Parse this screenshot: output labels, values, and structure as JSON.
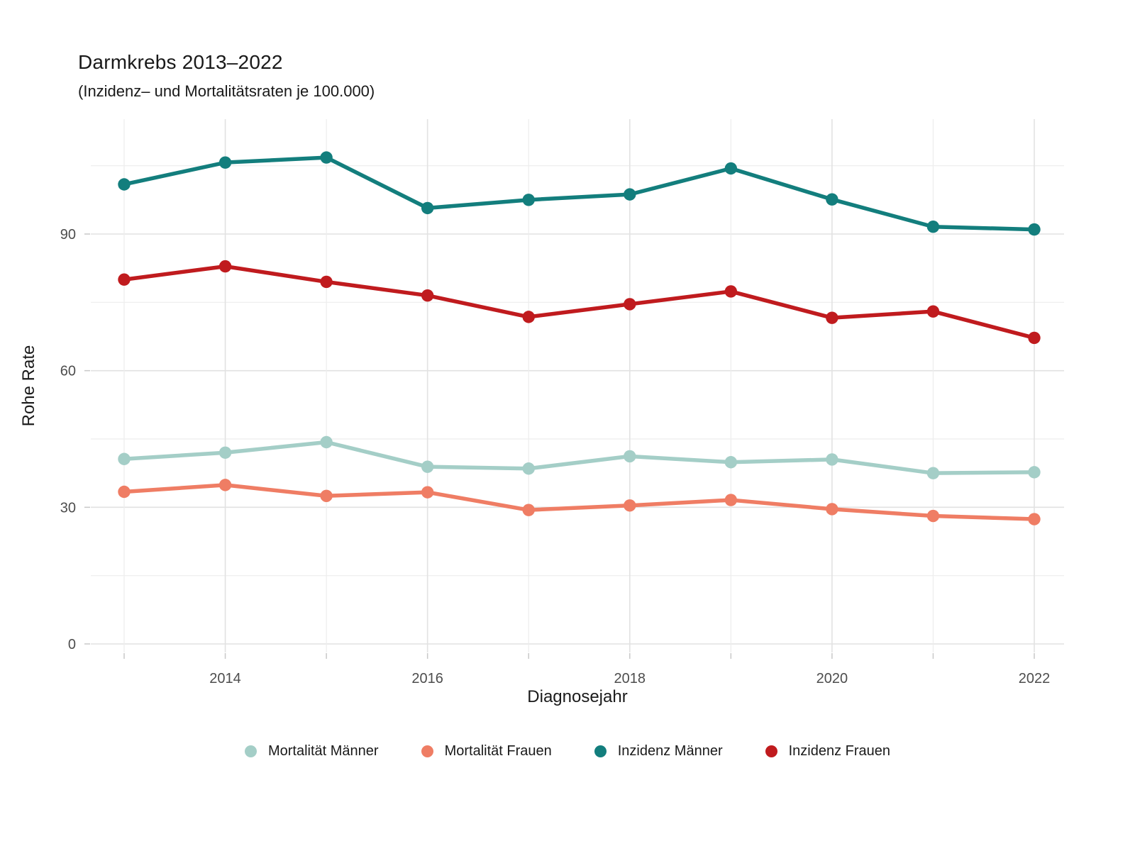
{
  "header": {
    "title": "Darmkrebs 2013–2022",
    "subtitle": "(Inzidenz– und Mortalitätsraten je 100.000)"
  },
  "chart_data": {
    "type": "line",
    "title": "Darmkrebs 2013–2022",
    "subtitle": "(Inzidenz– und Mortalitätsraten je 100.000)",
    "xlabel": "Diagnosejahr",
    "ylabel": "Rohe Rate",
    "x": [
      2013,
      2014,
      2015,
      2016,
      2017,
      2018,
      2019,
      2020,
      2021,
      2022
    ],
    "xticks_labeled": [
      2014,
      2016,
      2018,
      2020,
      2022
    ],
    "yticks": [
      0,
      30,
      60,
      90
    ],
    "yticks_minor": [
      15,
      45,
      75,
      105
    ],
    "ylim": [
      0,
      115
    ],
    "grid": "on",
    "legend_position": "bottom",
    "series": [
      {
        "name": "Mortalität Männer",
        "color": "#A4CEC7",
        "values": [
          40.6,
          42.0,
          44.3,
          38.9,
          38.5,
          41.2,
          39.9,
          40.5,
          37.5,
          37.7
        ]
      },
      {
        "name": "Mortalität Frauen",
        "color": "#EF7D64",
        "values": [
          33.4,
          34.9,
          32.5,
          33.3,
          29.4,
          30.4,
          31.6,
          29.6,
          28.1,
          27.4
        ]
      },
      {
        "name": "Inzidenz Männer",
        "color": "#137E7D",
        "values": [
          100.9,
          105.7,
          106.8,
          95.7,
          97.5,
          98.7,
          104.4,
          97.6,
          91.6,
          91.0
        ]
      },
      {
        "name": "Inzidenz Frauen",
        "color": "#C01B1E",
        "values": [
          80.0,
          82.9,
          79.5,
          76.5,
          71.8,
          74.6,
          77.4,
          71.6,
          73.0,
          67.2
        ]
      }
    ],
    "colors": {
      "grid_major": "#E2E2E2",
      "grid_minor": "#EDEDED",
      "tick_mark": "#C9C9C9",
      "tick_label": "#4D4D4D",
      "axis_title": "#1A1A1A",
      "background": "#FFFFFF"
    }
  }
}
